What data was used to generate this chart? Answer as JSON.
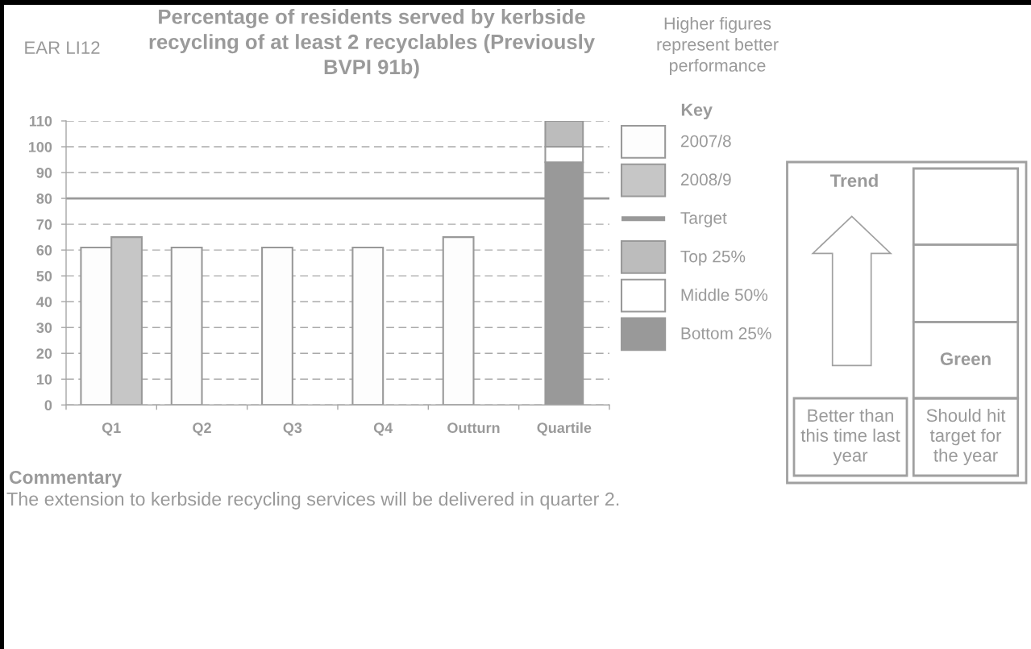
{
  "chart_data": [
    {
      "type": "bar",
      "title": "Percentage of residents served by kerbside recycling of at least 2 recyclables (Previously BVPI 91b)",
      "categories": [
        "Q1",
        "Q2",
        "Q3",
        "Q4",
        "Outturn",
        "Quartile"
      ],
      "series": [
        {
          "name": "2007/8",
          "color": "#fdfdfd",
          "values": [
            61,
            61,
            61,
            61,
            65,
            null
          ]
        },
        {
          "name": "2008/9",
          "color": "#c6c6c6",
          "values": [
            65,
            null,
            null,
            null,
            null,
            null
          ]
        },
        {
          "name": "Bottom 25%",
          "color": "#999999",
          "values": [
            null,
            null,
            null,
            null,
            null,
            94
          ],
          "base": [
            null,
            null,
            null,
            null,
            null,
            0
          ]
        },
        {
          "name": "Middle 50%",
          "color": "#ffffff",
          "values": [
            null,
            null,
            null,
            null,
            null,
            6
          ],
          "base": [
            null,
            null,
            null,
            null,
            null,
            94
          ]
        },
        {
          "name": "Top 25%",
          "color": "#bcbcbc",
          "values": [
            null,
            null,
            null,
            null,
            null,
            10
          ],
          "base": [
            null,
            null,
            null,
            null,
            null,
            100
          ]
        }
      ],
      "ylim": [
        0,
        110
      ],
      "yticks": [
        0,
        10,
        20,
        30,
        40,
        50,
        60,
        70,
        80,
        90,
        100,
        110
      ],
      "grid": "y",
      "ref_lines": [
        {
          "axis": "y",
          "value": 80,
          "label": "Target",
          "color": "#999999"
        }
      ],
      "legend": "right",
      "legend_title": "Key",
      "annotations": [
        "EAR LI12",
        "Higher figures represent better performance",
        "Commentary",
        "The extension to kerbside recycling services will be delivered in quarter 2."
      ]
    },
    {
      "type": "other",
      "annotations": [
        "Trend",
        "Better than this time last year",
        "Green",
        "Should hit target for the year"
      ]
    }
  ]
}
